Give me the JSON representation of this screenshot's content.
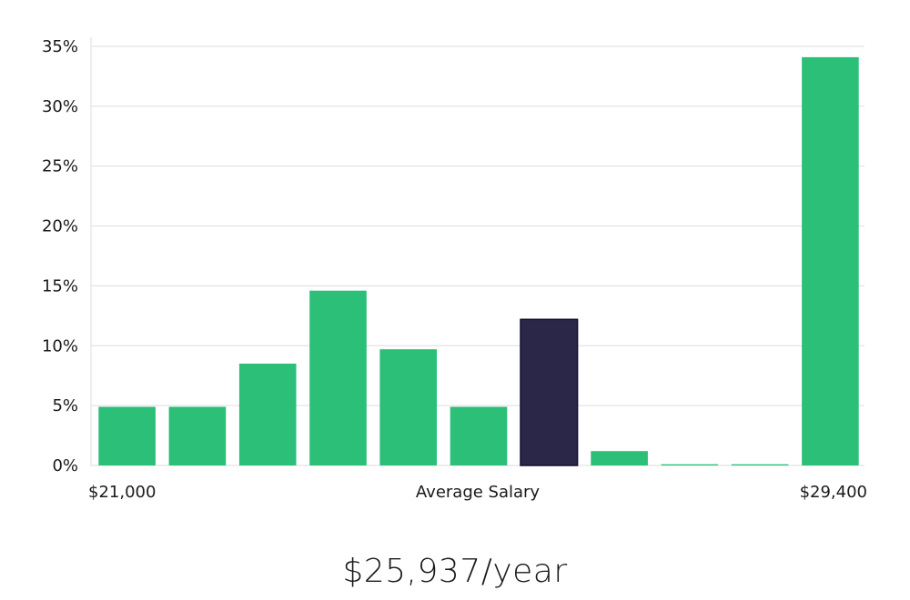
{
  "chart_data": {
    "type": "bar",
    "title": "",
    "xlabel": "Average Salary",
    "ylabel": "",
    "x_range_labels": {
      "min": "$21,000",
      "max": "$29,400"
    },
    "ylim": [
      0,
      35
    ],
    "yticks": [
      0,
      5,
      10,
      15,
      20,
      25,
      30,
      35
    ],
    "ytick_labels": [
      "0%",
      "5%",
      "10%",
      "15%",
      "20%",
      "25%",
      "30%",
      "35%"
    ],
    "grid": true,
    "values": [
      4.9,
      4.9,
      8.5,
      14.6,
      9.7,
      4.9,
      12.2,
      1.2,
      0.1,
      0.1,
      34.1
    ],
    "highlight_index": 6,
    "colors": {
      "bar": "#2bbf78",
      "highlight": "#2a2748",
      "highlight_border": "#14102e",
      "grid": "#dddddd",
      "text": "#1a1a1a"
    }
  },
  "summary": {
    "salary": "$25,937/year"
  }
}
